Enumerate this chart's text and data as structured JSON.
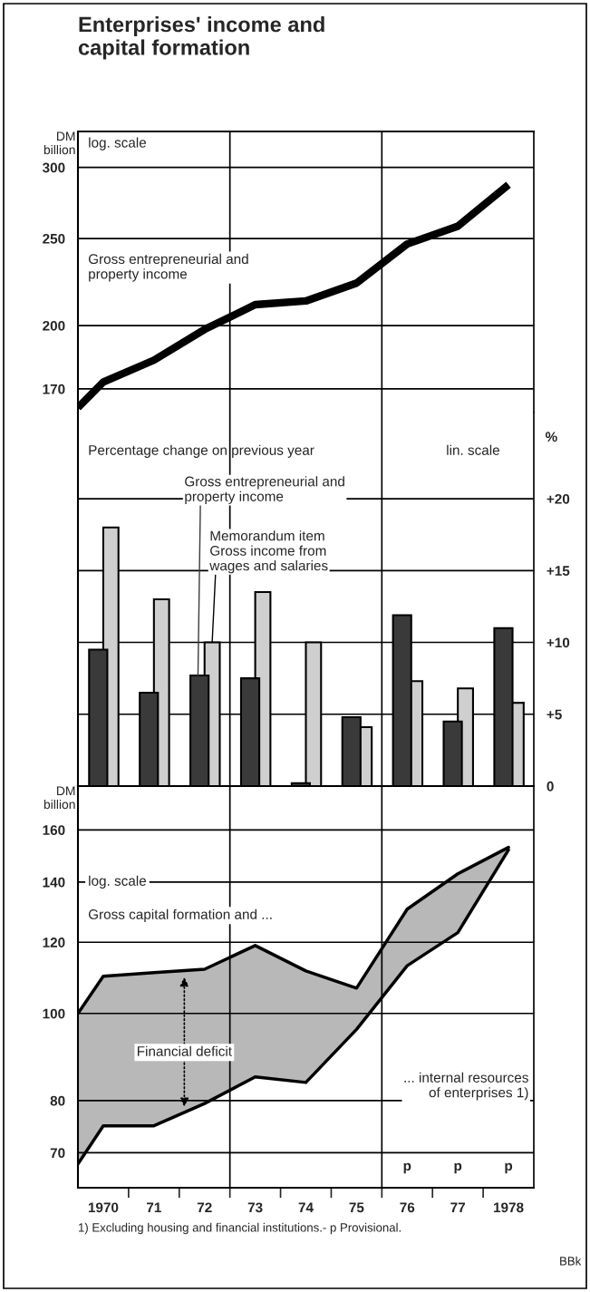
{
  "chart_data": [
    {
      "type": "line",
      "title": "Enterprises' income and\ncapital formation",
      "ylabel": "DM billion",
      "log": "y",
      "x": [
        1969.5,
        1970,
        1971,
        1972,
        1973,
        1974,
        1975,
        1976,
        1977,
        1978
      ],
      "series": [
        {
          "name": "Gross entrepreneurial and\nproperty income",
          "color": "#000000",
          "values": [
            162,
            173,
            183,
            198,
            211,
            213,
            223,
            246.5,
            258,
            287
          ]
        }
      ],
      "xlim": [
        1969.5,
        1978.5
      ],
      "ylim": [
        160,
        329
      ],
      "yticks": [
        170,
        200,
        250,
        300
      ],
      "grid": "y",
      "tick_labels": "y",
      "ref_lines": [
        {
          "axis": "x",
          "value": 1972.5
        },
        {
          "axis": "x",
          "value": 1975.5
        }
      ],
      "annotations": [
        "log. scale"
      ]
    },
    {
      "type": "bar",
      "ylabel": "%",
      "x": [
        1970,
        1971,
        1972,
        1973,
        1974,
        1975,
        1976,
        1977,
        1978
      ],
      "series": [
        {
          "name": "Gross entrepreneurial and\nproperty income",
          "color": "#3a3a3a",
          "values": [
            9.5,
            6.5,
            7.7,
            7.5,
            0.2,
            4.8,
            11.9,
            4.5,
            11.0
          ]
        },
        {
          "name": "Memorandum item\nGross income from\nwages and salaries",
          "color": "#cfcfcf",
          "values": [
            18.0,
            13.0,
            10.0,
            13.5,
            10.0,
            4.1,
            7.3,
            6.8,
            5.8
          ]
        }
      ],
      "xlim": [
        1969.5,
        1978.5
      ],
      "ylim": [
        0,
        26
      ],
      "yticks": [
        {
          "value": 0,
          "label": "0"
        },
        {
          "value": 5,
          "label": "+5"
        },
        {
          "value": 10,
          "label": "+10"
        },
        {
          "value": 15,
          "label": "+15"
        },
        {
          "value": 20,
          "label": "+20"
        }
      ],
      "grid": "y",
      "tick_labels": "y",
      "ref_lines": [
        {
          "axis": "x",
          "value": 1972.5
        },
        {
          "axis": "x",
          "value": 1975.5
        }
      ],
      "annotations": [
        "Percentage change on previous year",
        "lin. scale"
      ]
    },
    {
      "type": "line",
      "ylabel": "DM billion",
      "log": "y",
      "x": [
        1969.5,
        1970,
        1971,
        1972,
        1973,
        1974,
        1975,
        1976,
        1977,
        1978
      ],
      "series": [
        {
          "name": "Financial deficit",
          "color": "#000000",
          "values": [
            100,
            110,
            111,
            112,
            119,
            111.5,
            106.7,
            130.6,
            143,
            153
          ],
          "lower": [
            68,
            75,
            75,
            79.4,
            85,
            83.8,
            96,
            113,
            123,
            152
          ],
          "upper": [
            100,
            110,
            111,
            112,
            119,
            111.5,
            106.7,
            130.6,
            143,
            153
          ]
        },
        {
          "color": "#000000",
          "values": [
            68,
            75,
            75,
            79.4,
            85,
            83.8,
            96,
            113,
            123,
            152
          ]
        }
      ],
      "xlim": [
        1969.5,
        1978.5
      ],
      "ylim": [
        64,
        179
      ],
      "yticks": [
        70,
        80,
        100,
        120,
        140,
        160
      ],
      "grid": "y",
      "xticks": [
        {
          "value": 1970,
          "label": "1970"
        },
        {
          "value": 1970.5,
          "label": null
        },
        {
          "value": 1971,
          "label": "71"
        },
        {
          "value": 1971.5,
          "label": null
        },
        {
          "value": 1972,
          "label": "72"
        },
        {
          "value": 1972.5,
          "label": null
        },
        {
          "value": 1973,
          "label": "73"
        },
        {
          "value": 1973.5,
          "label": null
        },
        {
          "value": 1974,
          "label": "74"
        },
        {
          "value": 1974.5,
          "label": null
        },
        {
          "value": 1975,
          "label": "75"
        },
        {
          "value": 1975.5,
          "label": null
        },
        {
          "value": 1976,
          "label": "76"
        },
        {
          "value": 1976.5,
          "label": null
        },
        {
          "value": 1977,
          "label": "77"
        },
        {
          "value": 1977.5,
          "label": null
        },
        {
          "value": 1978,
          "label": "1978"
        }
      ],
      "ref_lines": [
        {
          "axis": "x",
          "value": 1972.5
        },
        {
          "axis": "x",
          "value": 1975.5
        }
      ],
      "annotations": [
        "log. scale",
        "Gross capital formation and ...",
        "... internal resources\nof enterprises 1)",
        "p",
        "p",
        "p",
        "1) Excluding housing and financial institutions.- p Provisional.",
        "BBk"
      ]
    }
  ]
}
